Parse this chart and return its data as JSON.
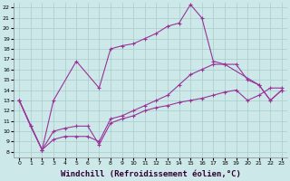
{
  "background_color": "#cce8e8",
  "grid_color": "#aacccc",
  "line_color": "#993399",
  "marker": "+",
  "marker_size": 3,
  "line_width": 0.8,
  "xlabel": "Windchill (Refroidissement éolien,°C)",
  "xlabel_fontsize": 6.5,
  "ylabel_ticks": [
    8,
    9,
    10,
    11,
    12,
    13,
    14,
    15,
    16,
    17,
    18,
    19,
    20,
    21,
    22
  ],
  "xtick_labels": [
    "0",
    "1",
    "2",
    "3",
    "4",
    "5",
    "6",
    "7",
    "8",
    "9",
    "10",
    "11",
    "12",
    "13",
    "14",
    "15",
    "16",
    "17",
    "18",
    "19",
    "20",
    "21",
    "22",
    "23"
  ],
  "xlim": [
    -0.5,
    23.5
  ],
  "ylim": [
    7.5,
    22.5
  ],
  "xticks": [
    0,
    1,
    2,
    3,
    4,
    5,
    6,
    7,
    8,
    9,
    10,
    11,
    12,
    13,
    14,
    15,
    16,
    17,
    18,
    19,
    20,
    21,
    22,
    23
  ],
  "series1": [
    [
      0,
      13.0
    ],
    [
      1,
      10.5
    ],
    [
      2,
      8.2
    ],
    [
      3,
      10.0
    ],
    [
      4,
      10.3
    ],
    [
      5,
      10.5
    ],
    [
      6,
      10.5
    ],
    [
      7,
      8.7
    ],
    [
      8,
      10.8
    ],
    [
      9,
      11.2
    ],
    [
      10,
      11.5
    ],
    [
      11,
      12.0
    ],
    [
      12,
      12.3
    ],
    [
      13,
      12.5
    ],
    [
      14,
      12.8
    ],
    [
      15,
      13.0
    ],
    [
      16,
      13.2
    ],
    [
      17,
      13.5
    ],
    [
      18,
      13.8
    ],
    [
      19,
      14.0
    ],
    [
      20,
      13.0
    ],
    [
      21,
      13.5
    ],
    [
      22,
      14.2
    ],
    [
      23,
      14.2
    ]
  ],
  "series2": [
    [
      0,
      13.0
    ],
    [
      1,
      10.5
    ],
    [
      2,
      8.2
    ],
    [
      3,
      9.2
    ],
    [
      4,
      9.5
    ],
    [
      5,
      9.5
    ],
    [
      6,
      9.5
    ],
    [
      7,
      9.0
    ],
    [
      8,
      11.2
    ],
    [
      9,
      11.5
    ],
    [
      10,
      12.0
    ],
    [
      11,
      12.5
    ],
    [
      12,
      13.0
    ],
    [
      13,
      13.5
    ],
    [
      14,
      14.5
    ],
    [
      15,
      15.5
    ],
    [
      16,
      16.0
    ],
    [
      17,
      16.5
    ],
    [
      18,
      16.5
    ],
    [
      19,
      16.5
    ],
    [
      20,
      15.0
    ],
    [
      21,
      14.5
    ],
    [
      22,
      13.0
    ],
    [
      23,
      14.0
    ]
  ],
  "series3": [
    [
      0,
      13.0
    ],
    [
      2,
      8.2
    ],
    [
      3,
      13.0
    ],
    [
      5,
      16.8
    ],
    [
      7,
      14.2
    ],
    [
      8,
      18.0
    ],
    [
      9,
      18.3
    ],
    [
      10,
      18.5
    ],
    [
      11,
      19.0
    ],
    [
      12,
      19.5
    ],
    [
      13,
      20.2
    ],
    [
      14,
      20.5
    ],
    [
      15,
      22.3
    ],
    [
      16,
      21.0
    ],
    [
      17,
      16.8
    ],
    [
      18,
      16.5
    ],
    [
      21,
      14.5
    ],
    [
      22,
      13.0
    ],
    [
      23,
      14.0
    ]
  ]
}
